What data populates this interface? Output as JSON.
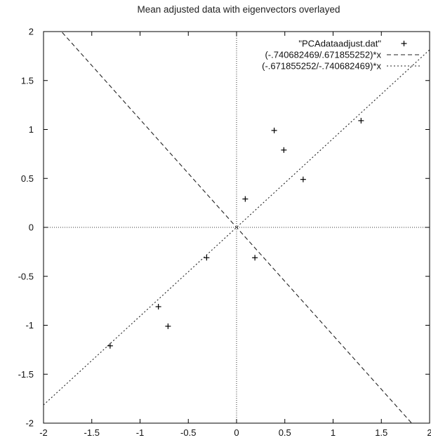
{
  "chart_data": {
    "type": "scatter",
    "title": "Mean adjusted data with eigenvectors overlayed",
    "xlabel": "",
    "ylabel": "",
    "xlim": [
      -2,
      2
    ],
    "ylim": [
      -2,
      2
    ],
    "x_ticks": [
      "-2",
      "-1.5",
      "-1",
      "-0.5",
      "0",
      "0.5",
      "1",
      "1.5",
      "2"
    ],
    "y_ticks": [
      "2",
      "1.5",
      "1",
      "0.5",
      "0",
      "-0.5",
      "-1",
      "-1.5",
      "-2"
    ],
    "x_tick_values": [
      -2,
      -1.5,
      -1,
      -0.5,
      0,
      0.5,
      1,
      1.5,
      2
    ],
    "y_tick_values": [
      2,
      1.5,
      1,
      0.5,
      0,
      -0.5,
      -1,
      -1.5,
      -2
    ],
    "grid": false,
    "zero_axes": true,
    "legend_position": "top-right",
    "series": [
      {
        "name": "\"PCAdataadjust.dat\"",
        "kind": "points",
        "marker": "plus",
        "points": [
          {
            "x": 0.69,
            "y": 0.49
          },
          {
            "x": -1.31,
            "y": -1.21
          },
          {
            "x": 0.39,
            "y": 0.99
          },
          {
            "x": 0.09,
            "y": 0.29
          },
          {
            "x": 1.29,
            "y": 1.09
          },
          {
            "x": 0.49,
            "y": 0.79
          },
          {
            "x": 0.19,
            "y": -0.31
          },
          {
            "x": -0.81,
            "y": -0.81
          },
          {
            "x": -0.31,
            "y": -0.31
          },
          {
            "x": -0.71,
            "y": -1.01
          }
        ]
      },
      {
        "name": "(-.740682469/.671855252)*x",
        "kind": "line",
        "dash": "long",
        "slope": -1.10244
      },
      {
        "name": "(-.671855252/-.740682469)*x",
        "kind": "line",
        "dash": "dotted",
        "slope": 0.90708
      }
    ]
  }
}
